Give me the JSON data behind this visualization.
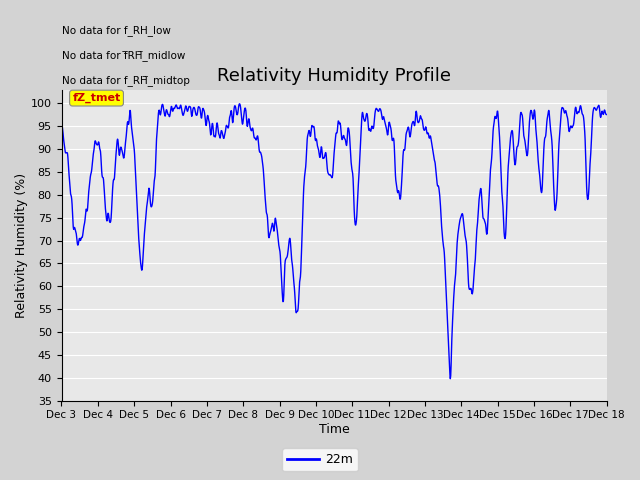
{
  "title": "Relativity Humidity Profile",
  "xlabel": "Time",
  "ylabel": "Relativity Humidity (%)",
  "line_color": "blue",
  "line_width": 1.0,
  "ylim": [
    35,
    103
  ],
  "yticks": [
    35,
    40,
    45,
    50,
    55,
    60,
    65,
    70,
    75,
    80,
    85,
    90,
    95,
    100
  ],
  "legend_label": "22m",
  "annotations": [
    "No data for f_RH_low",
    "No data for f̅RH̅_midlow",
    "No data for f_RH̅_midtop"
  ],
  "tooltip_text": "fZ_tmet",
  "tooltip_color": "#cc0000",
  "tooltip_bg": "#ffff00",
  "fig_bg": "#d3d3d3",
  "ax_bg": "#e8e8e8"
}
